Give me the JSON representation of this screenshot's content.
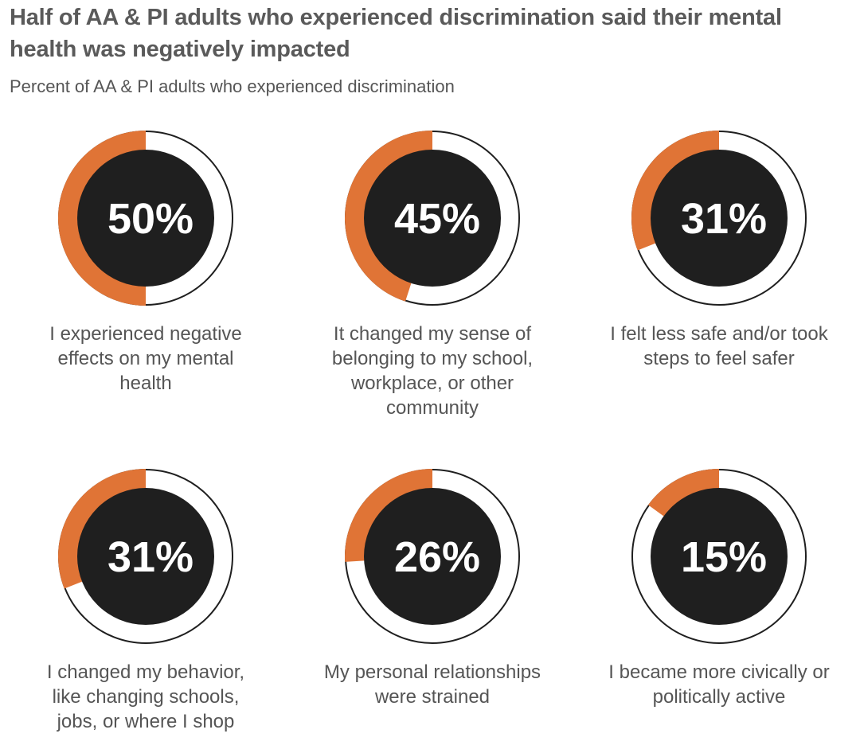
{
  "title": "Half of AA & PI adults who experienced discrimination said their mental health was negatively impacted",
  "subtitle": "Percent of AA & PI adults who experienced discrimination",
  "colors": {
    "accent": "#e07436",
    "center": "#1f1f1f",
    "ring_outline": "#1f1f1f",
    "label": "#ffffff"
  },
  "chart_data": {
    "type": "pie",
    "title": "Half of AA & PI adults who experienced discrimination said their mental health was negatively impacted",
    "subtitle": "Percent of AA & PI adults who experienced discrimination",
    "categories": [
      "I experienced negative effects on my mental health",
      "It changed my sense of belonging to my school, workplace, or other community",
      "I felt less safe and/or took steps to feel safer",
      "I changed my behavior, like changing schools, jobs, or where I shop",
      "My personal relationships were strained",
      "I became more civically or politically active"
    ],
    "values": [
      50,
      45,
      31,
      31,
      26,
      15
    ],
    "labels": [
      "50%",
      "45%",
      "31%",
      "31%",
      "26%",
      "15%"
    ]
  }
}
